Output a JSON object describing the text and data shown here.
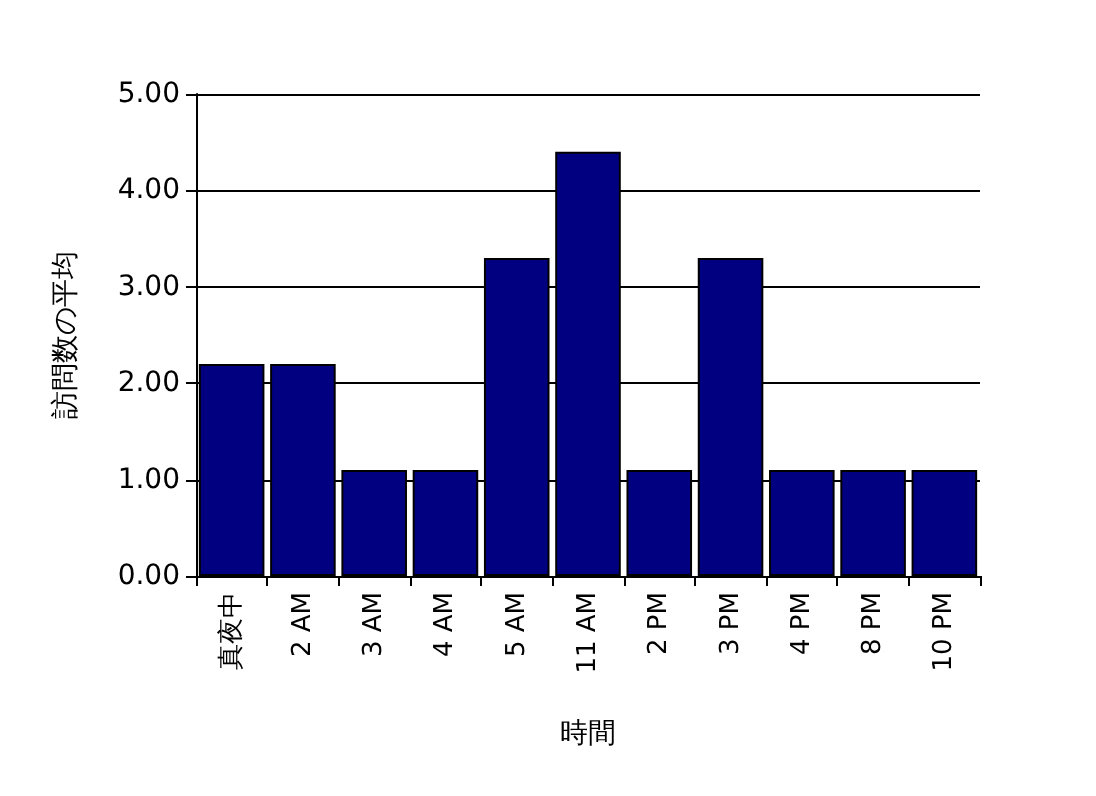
{
  "chart_data": {
    "type": "bar",
    "xlabel": "時間",
    "ylabel": "訪問数の平均",
    "categories": [
      "真夜中",
      "2 AM",
      "3 AM",
      "4 AM",
      "5 AM",
      "11 AM",
      "2 PM",
      "3 PM",
      "4 PM",
      "8 PM",
      "10 PM"
    ],
    "values": [
      2.2,
      2.2,
      1.1,
      1.1,
      3.3,
      4.4,
      1.1,
      3.3,
      1.1,
      1.1,
      1.1
    ],
    "color": "#000080",
    "ylim": [
      0,
      5
    ],
    "yticks": [
      {
        "value": 0,
        "label": "0.00"
      },
      {
        "value": 1,
        "label": "1.00"
      },
      {
        "value": 2,
        "label": "2.00"
      },
      {
        "value": 3,
        "label": "3.00"
      },
      {
        "value": 4,
        "label": "4.00"
      },
      {
        "value": 5,
        "label": "5.00"
      }
    ],
    "grid": "y"
  }
}
